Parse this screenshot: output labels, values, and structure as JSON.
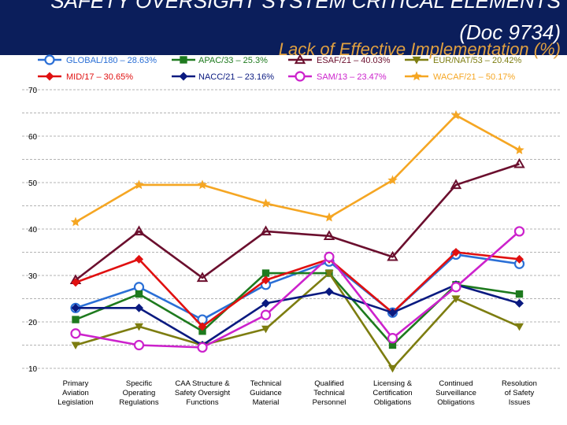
{
  "header": {
    "title_line_1": "SAFETY OVERSIGHT SYSTEM CRITICAL ELEMENTS",
    "title_line_2": "(Doc 9734)",
    "subtitle": "Lack of Effective Implementation (%)"
  },
  "colors": {
    "header_background": "#0b1e5b",
    "title_text": "#ffffff",
    "subtitle_text": "#e0a040"
  },
  "chart_data": {
    "type": "line",
    "title": "",
    "xlabel": "",
    "ylabel": "",
    "ylim": [
      10,
      70
    ],
    "yticks": [
      10,
      20,
      30,
      40,
      50,
      60,
      70
    ],
    "grid": true,
    "legend": "top",
    "categories": [
      [
        "Primary",
        "Aviation",
        "Legislation"
      ],
      [
        "Specific",
        "Operating",
        "Regulations"
      ],
      [
        "CAA Structure &",
        "Safety Oversight",
        "Functions"
      ],
      [
        "Technical",
        "Guidance",
        "Material"
      ],
      [
        "Qualified",
        "Technical",
        "Personnel"
      ],
      [
        "Licensing &",
        "Certification",
        "Obligations"
      ],
      [
        "Continued",
        "Surveillance",
        "Obligations"
      ],
      [
        "Resolution",
        "of Safety",
        "Issues"
      ]
    ],
    "series": [
      {
        "name": "GLOBAL/180 – 28.63%",
        "color": "#2a6fd6",
        "marker": "circle",
        "values": [
          23,
          27.5,
          20.5,
          28,
          33,
          22,
          34.5,
          32.5
        ]
      },
      {
        "name": "APAC/33 – 25.3%",
        "color": "#1e7a1e",
        "marker": "square",
        "values": [
          20.5,
          26,
          18,
          30.5,
          30.5,
          15,
          28,
          26
        ]
      },
      {
        "name": "ESAF/21 – 40.03%",
        "color": "#6b0f2e",
        "marker": "triangle-up",
        "values": [
          29,
          39.5,
          29.5,
          39.5,
          38.5,
          34,
          49.5,
          54
        ]
      },
      {
        "name": "EUR/NAT/53 – 20.42%",
        "color": "#7d7d10",
        "marker": "triangle-down",
        "values": [
          15,
          19,
          15,
          18.5,
          30.5,
          10,
          25,
          19
        ]
      },
      {
        "name": "MID/17 – 30.65%",
        "color": "#e01010",
        "marker": "diamond",
        "values": [
          28.5,
          33.5,
          19,
          29,
          33.5,
          22,
          35,
          33.5
        ]
      },
      {
        "name": "NACC/21 – 23.16%",
        "color": "#0a1a80",
        "marker": "diamond",
        "values": [
          23,
          23,
          15,
          24,
          26.5,
          22,
          28,
          24
        ]
      },
      {
        "name": "SAM/13 – 23.47%",
        "color": "#cc22cc",
        "marker": "circle",
        "values": [
          17.5,
          15,
          14.5,
          21.5,
          34,
          16.5,
          27.5,
          39.5
        ]
      },
      {
        "name": "WACAF/21 – 50.17%",
        "color": "#f5a623",
        "marker": "star",
        "values": [
          41.5,
          49.5,
          49.5,
          45.5,
          42.5,
          50.5,
          64.5,
          57
        ]
      }
    ]
  }
}
